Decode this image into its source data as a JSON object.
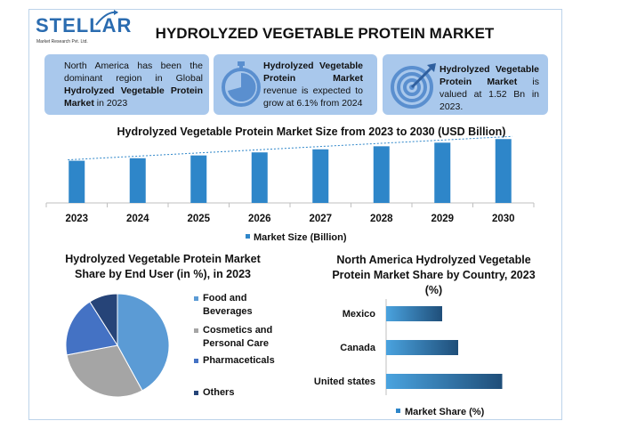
{
  "logo": {
    "name": "STELLAR",
    "sub": "Market Research Pvt. Ltd."
  },
  "title": "HYDROLYZED VEGETABLE PROTEIN MARKET",
  "cards": [
    {
      "plain1": "North America has been the dominant region in Global ",
      "bold": "Hydrolyzed Vegetable Protein Market",
      "plain2": " in 2023"
    },
    {
      "bold": "Hydrolyzed Vegetable Protein Market",
      "plain2": " revenue is expected to grow at 6.1% from 2024"
    },
    {
      "bold": "Hydrolyzed Vegetable Protein Market",
      "plain2": " is valued at 1.52 Bn in 2023."
    }
  ],
  "colors": {
    "bar": "#2e86c9",
    "card": "#a9c8ec",
    "pie_food": "#5b9bd5",
    "pie_cosmetics": "#a5a5a5",
    "pie_pharma": "#4472c4",
    "pie_others": "#264478"
  },
  "chart_data": [
    {
      "type": "bar",
      "title": "Hydrolyzed Vegetable Protein Market Size from 2023 to 2030 (USD Billion)",
      "categories": [
        "2023",
        "2024",
        "2025",
        "2026",
        "2027",
        "2028",
        "2029",
        "2030"
      ],
      "series": [
        {
          "name": "Market Size (Billion)",
          "values": [
            1.52,
            1.61,
            1.71,
            1.82,
            1.93,
            2.04,
            2.17,
            2.3
          ]
        }
      ],
      "trendline": true,
      "legend": "bottom"
    },
    {
      "type": "pie",
      "title": "Hydrolyzed Vegetable Protein Market Share by End User (in %), in 2023",
      "labels": [
        "Food and Beverages",
        "Cosmetics and Personal Care",
        "Pharmaceticals",
        "Others"
      ],
      "values": [
        42,
        30,
        19,
        9
      ],
      "legend": "right"
    },
    {
      "type": "bar",
      "orientation": "horizontal",
      "title": "North America Hydrolyzed Vegetable Protein Market Share by Country, 2023 (%)",
      "categories": [
        "Mexico",
        "Canada",
        "United states"
      ],
      "series": [
        {
          "name": "Market Share (%)",
          "values": [
            14,
            18,
            29
          ]
        }
      ],
      "legend": "bottom"
    }
  ]
}
